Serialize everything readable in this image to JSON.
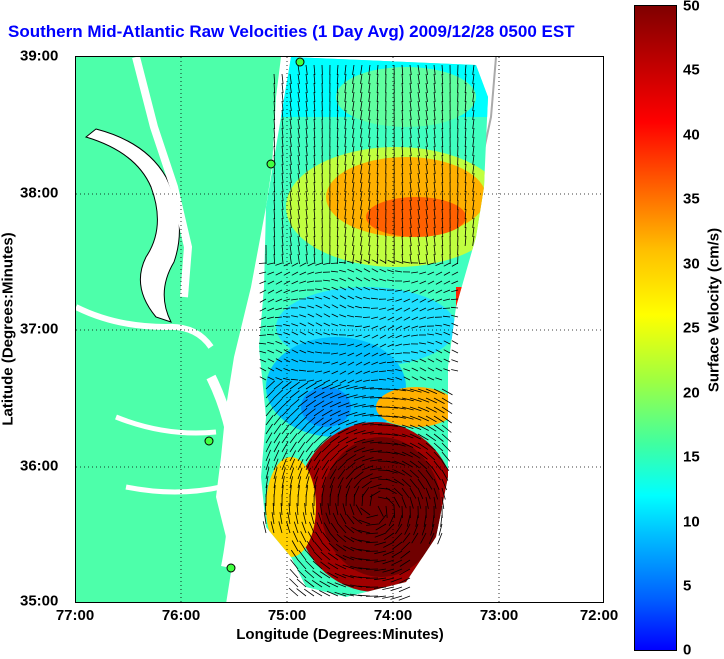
{
  "title": "Southern Mid-Atlantic Raw Velocities (1 Day Avg) 2009/12/28 0500 EST",
  "map": {
    "x_label": "Longitude (Degrees:Minutes)",
    "y_label": "Latitude (Degrees:Minutes)",
    "x_ticks": [
      "77:00",
      "76:00",
      "75:00",
      "74:00",
      "73:00",
      "72:00"
    ],
    "y_ticks": [
      "39:00",
      "38:00",
      "37:00",
      "36:00",
      "35:00"
    ],
    "land_color": "#4dffaa",
    "grid": "dotted"
  },
  "colorbar": {
    "label": "Surface Velocity (cm/s)",
    "ticks": [
      "50",
      "45",
      "40",
      "35",
      "30",
      "25",
      "20",
      "15",
      "10",
      "5",
      "0"
    ],
    "min": 0,
    "max": 50
  }
}
